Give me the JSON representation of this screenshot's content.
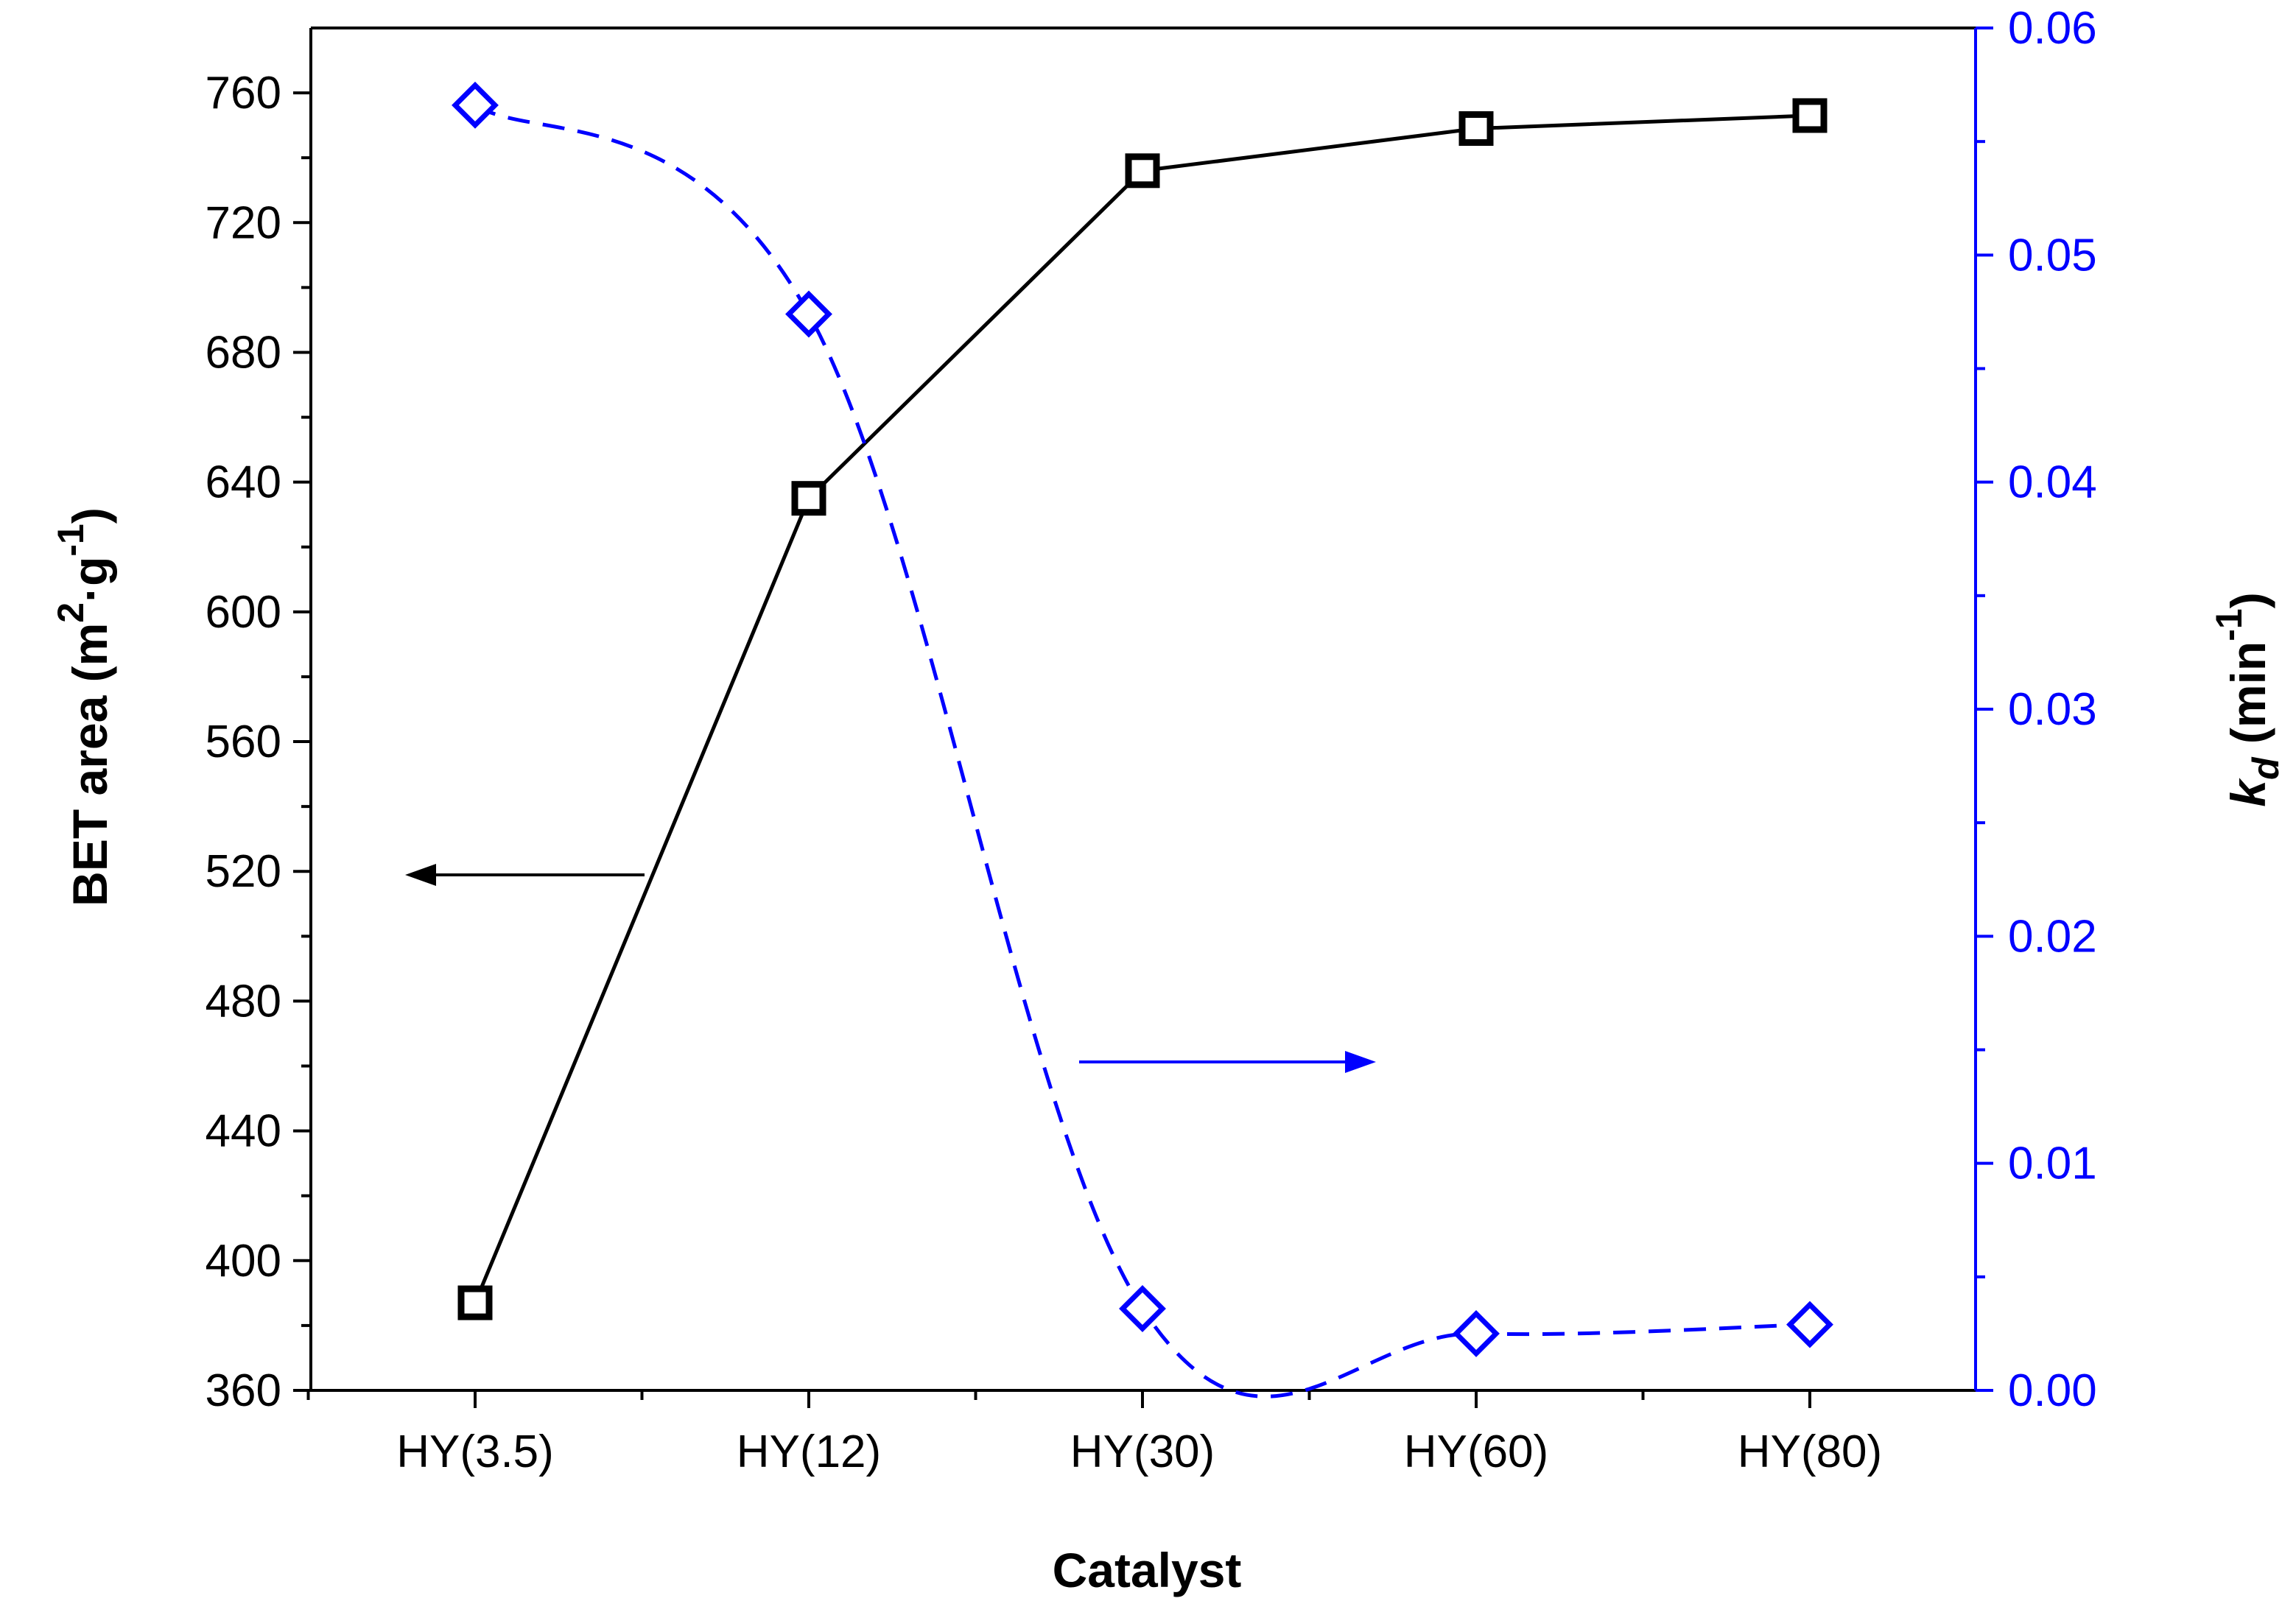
{
  "chart_data": {
    "type": "line",
    "categories": [
      "HY(3.5)",
      "HY(12)",
      "HY(30)",
      "HY(60)",
      "HY(80)"
    ],
    "xlabel": "Catalyst",
    "y_left": {
      "label_main": "BET area (m",
      "label_sup1": "2",
      "label_mid": "·g",
      "label_sup2": "-1",
      "label_end": ")",
      "lim": [
        360,
        780
      ],
      "ticks": [
        360,
        400,
        440,
        480,
        520,
        560,
        600,
        640,
        680,
        720,
        760
      ],
      "tick_labels": [
        "360",
        "400",
        "440",
        "480",
        "520",
        "560",
        "600",
        "640",
        "680",
        "720",
        "760"
      ],
      "color": "#000000"
    },
    "y_right": {
      "label_k": "k",
      "label_sub": "d",
      "label_unit": " (min",
      "label_sup": "-1",
      "label_end": ")",
      "lim": [
        0.0,
        0.06
      ],
      "ticks": [
        0.0,
        0.01,
        0.02,
        0.03,
        0.04,
        0.05,
        0.06
      ],
      "tick_labels": [
        "0.00",
        "0.01",
        "0.02",
        "0.03",
        "0.04",
        "0.05",
        "0.06"
      ],
      "color": "#0000ff"
    },
    "series": [
      {
        "name": "BET area",
        "axis": "left",
        "marker": "square",
        "line": "solid",
        "color": "#000000",
        "values": [
          387,
          635,
          736,
          749,
          753
        ]
      },
      {
        "name": "kd",
        "axis": "right",
        "marker": "diamond",
        "line": "dashed",
        "color": "#0000ff",
        "values": [
          0.0566,
          0.0474,
          0.0036,
          0.0025,
          0.0029
        ]
      }
    ],
    "annotations": [
      {
        "type": "arrow",
        "direction": "left",
        "refers_to": "BET area",
        "color": "#000000"
      },
      {
        "type": "arrow",
        "direction": "right",
        "refers_to": "kd",
        "color": "#0000ff"
      }
    ]
  }
}
